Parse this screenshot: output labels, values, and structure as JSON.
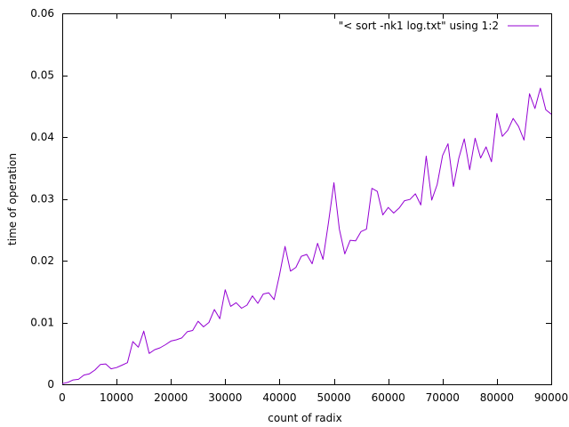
{
  "chart_data": {
    "type": "line",
    "title": "",
    "xlabel": "count of radix",
    "ylabel": "time of operation",
    "xlim": [
      0,
      90000
    ],
    "ylim": [
      0,
      0.06
    ],
    "x_ticks": [
      "0",
      "10000",
      "20000",
      "30000",
      "40000",
      "50000",
      "60000",
      "70000",
      "80000",
      "90000"
    ],
    "y_ticks": [
      "0",
      "0.01",
      "0.02",
      "0.03",
      "0.04",
      "0.05",
      "0.06"
    ],
    "grid": false,
    "legend_position": "top-right",
    "series": [
      {
        "name": "\"< sort -nk1 log.txt\" using 1:2",
        "color": "#9400d3",
        "x": [
          0,
          1000,
          2000,
          3000,
          4000,
          5000,
          6000,
          7000,
          8000,
          9000,
          10000,
          11000,
          12000,
          13000,
          14000,
          15000,
          16000,
          17000,
          18000,
          19000,
          20000,
          21000,
          22000,
          23000,
          24000,
          25000,
          26000,
          27000,
          28000,
          29000,
          30000,
          31000,
          32000,
          33000,
          34000,
          35000,
          36000,
          37000,
          38000,
          39000,
          40000,
          41000,
          42000,
          43000,
          44000,
          45000,
          46000,
          47000,
          48000,
          49000,
          50000,
          51000,
          52000,
          53000,
          54000,
          55000,
          56000,
          57000,
          58000,
          59000,
          60000,
          61000,
          62000,
          63000,
          64000,
          65000,
          66000,
          67000,
          68000,
          69000,
          70000,
          71000,
          72000,
          73000,
          74000,
          75000,
          76000,
          77000,
          78000,
          79000,
          80000,
          81000,
          82000,
          83000,
          84000,
          85000,
          86000,
          87000,
          88000,
          89000,
          90000
        ],
        "y": [
          0.0001,
          0.0003,
          0.0007,
          0.0008,
          0.0015,
          0.0017,
          0.0023,
          0.0032,
          0.0033,
          0.0025,
          0.0027,
          0.0031,
          0.0035,
          0.0069,
          0.006,
          0.0086,
          0.005,
          0.0056,
          0.0059,
          0.0064,
          0.007,
          0.0072,
          0.0075,
          0.0085,
          0.0087,
          0.0102,
          0.0093,
          0.01,
          0.0121,
          0.0106,
          0.0153,
          0.0126,
          0.0132,
          0.0123,
          0.0128,
          0.0143,
          0.0131,
          0.0146,
          0.0148,
          0.0137,
          0.0177,
          0.0223,
          0.0183,
          0.0189,
          0.0207,
          0.021,
          0.0195,
          0.0228,
          0.0202,
          0.0261,
          0.0326,
          0.0251,
          0.0211,
          0.0233,
          0.0232,
          0.0247,
          0.0251,
          0.0317,
          0.0312,
          0.0274,
          0.0286,
          0.0277,
          0.0285,
          0.0297,
          0.0299,
          0.0308,
          0.029,
          0.0369,
          0.0298,
          0.0323,
          0.037,
          0.0389,
          0.032,
          0.0366,
          0.0397,
          0.0347,
          0.0398,
          0.0366,
          0.0384,
          0.036,
          0.0438,
          0.0401,
          0.0411,
          0.043,
          0.0417,
          0.0395,
          0.047,
          0.0446,
          0.0479,
          0.0444,
          0.0437
        ]
      }
    ]
  }
}
